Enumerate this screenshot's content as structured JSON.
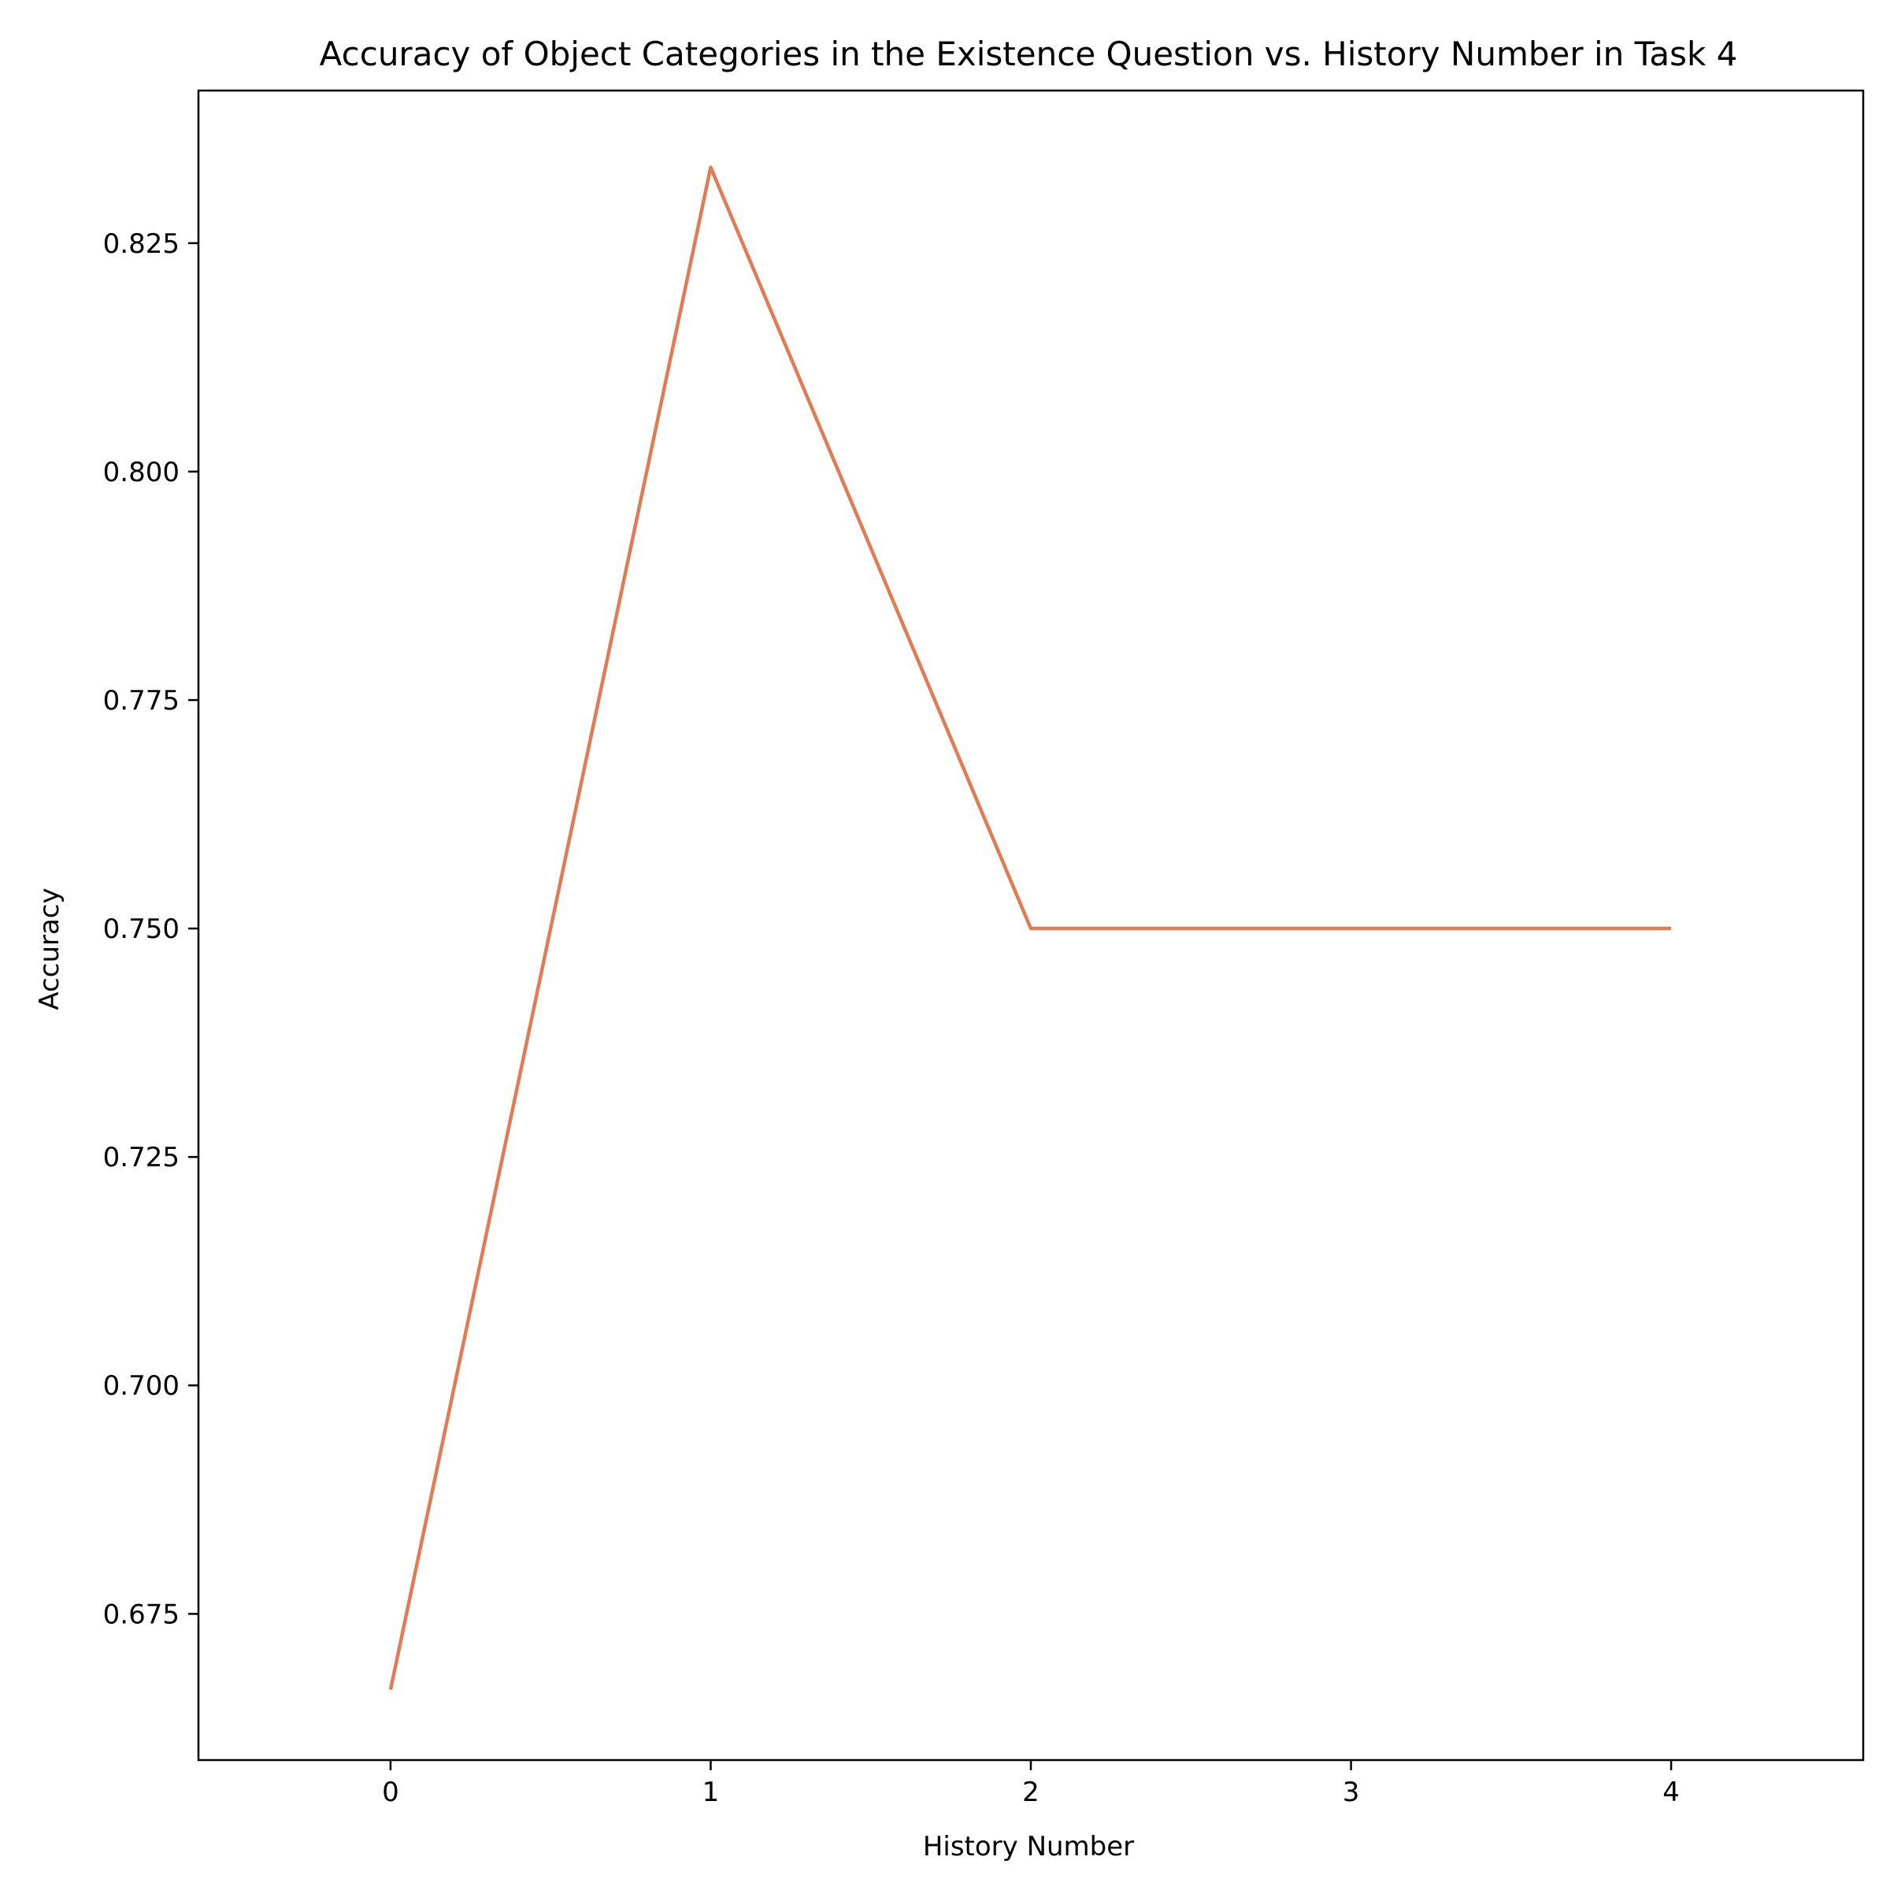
{
  "chart_data": {
    "type": "line",
    "title": "Accuracy of Object Categories in the Existence Question vs. History Number in Task 4",
    "xlabel": "History Number",
    "ylabel": "Accuracy",
    "x": [
      0,
      1,
      2,
      3,
      4
    ],
    "series": [
      {
        "values": [
          0.6667,
          0.8333,
          0.75,
          0.75,
          0.75
        ],
        "color": "#E07B54"
      }
    ],
    "xlim": [
      -0.6,
      4.6
    ],
    "ylim": [
      0.659,
      0.8417
    ],
    "xticks": [
      0,
      1,
      2,
      3,
      4
    ],
    "xtick_labels": [
      "0",
      "1",
      "2",
      "3",
      "4"
    ],
    "yticks": [
      0.675,
      0.7,
      0.725,
      0.75,
      0.775,
      0.8,
      0.825
    ],
    "ytick_labels": [
      "0.675",
      "0.700",
      "0.725",
      "0.750",
      "0.775",
      "0.800",
      "0.825"
    ],
    "grid": false,
    "legend": "none"
  }
}
